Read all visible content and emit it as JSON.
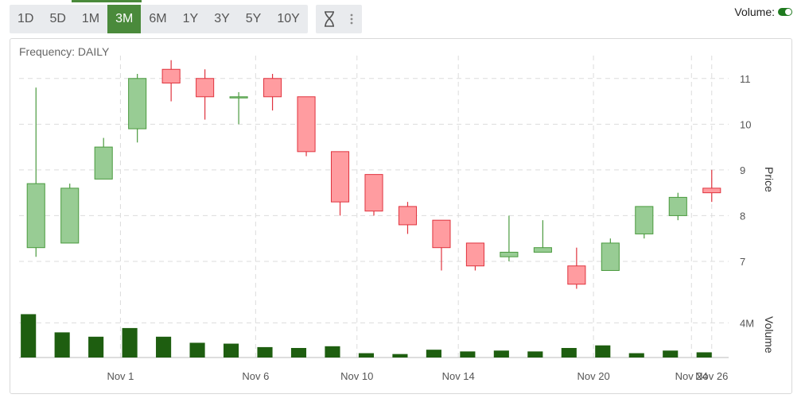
{
  "toolbar": {
    "ranges": [
      "1D",
      "5D",
      "1M",
      "3M",
      "6M",
      "1Y",
      "3Y",
      "5Y",
      "10Y"
    ],
    "active_range": "3M"
  },
  "volume_toggle": {
    "label": "Volume:",
    "enabled": true
  },
  "colors": {
    "up": "#4a9a3e",
    "up_fill": "#98cc94",
    "down": "#e0333e",
    "down_fill": "#ff9ca0",
    "volume": "#1e5e10",
    "accent": "#4a8a3b"
  },
  "chart_data": {
    "type": "candlestick",
    "frequency_label": "Frequency: DAILY",
    "ylabel": "Price",
    "volume_label": "Volume",
    "yticks": [
      7,
      8,
      9,
      10,
      11
    ],
    "ylim": [
      6.2,
      11.5
    ],
    "volume_tick": "4M",
    "xticks": [
      "Nov 1",
      "Nov 6",
      "Nov 10",
      "Nov 14",
      "Nov 20",
      "Nov 24",
      "Nov 26"
    ],
    "candles": [
      {
        "open": 7.3,
        "high": 10.8,
        "low": 7.1,
        "close": 8.7,
        "volume": 5.0
      },
      {
        "open": 7.4,
        "high": 8.7,
        "low": 7.4,
        "close": 8.6,
        "volume": 2.9
      },
      {
        "open": 8.8,
        "high": 9.7,
        "low": 8.8,
        "close": 9.5,
        "volume": 2.4
      },
      {
        "open": 9.9,
        "high": 11.1,
        "low": 9.6,
        "close": 11.0,
        "volume": 3.4
      },
      {
        "open": 11.2,
        "high": 11.4,
        "low": 10.5,
        "close": 10.9,
        "volume": 2.4
      },
      {
        "open": 11.0,
        "high": 11.2,
        "low": 10.1,
        "close": 10.6,
        "volume": 1.7
      },
      {
        "open": 10.6,
        "high": 10.7,
        "low": 10.0,
        "close": 10.6,
        "volume": 1.6
      },
      {
        "open": 11.0,
        "high": 11.1,
        "low": 10.3,
        "close": 10.6,
        "volume": 1.2
      },
      {
        "open": 10.6,
        "high": 10.6,
        "low": 9.3,
        "close": 9.4,
        "volume": 1.1
      },
      {
        "open": 9.4,
        "high": 9.4,
        "low": 8.0,
        "close": 8.3,
        "volume": 1.3
      },
      {
        "open": 8.9,
        "high": 8.9,
        "low": 8.0,
        "close": 8.1,
        "volume": 0.5
      },
      {
        "open": 8.2,
        "high": 8.3,
        "low": 7.6,
        "close": 7.8,
        "volume": 0.4
      },
      {
        "open": 7.9,
        "high": 7.9,
        "low": 6.8,
        "close": 7.3,
        "volume": 0.9
      },
      {
        "open": 7.4,
        "high": 7.4,
        "low": 6.8,
        "close": 6.9,
        "volume": 0.7
      },
      {
        "open": 7.1,
        "high": 8.0,
        "low": 7.0,
        "close": 7.2,
        "volume": 0.8
      },
      {
        "open": 7.2,
        "high": 7.9,
        "low": 7.2,
        "close": 7.3,
        "volume": 0.7
      },
      {
        "open": 6.9,
        "high": 7.3,
        "low": 6.4,
        "close": 6.5,
        "volume": 1.1
      },
      {
        "open": 6.8,
        "high": 7.5,
        "low": 6.8,
        "close": 7.4,
        "volume": 1.4
      },
      {
        "open": 7.6,
        "high": 8.2,
        "low": 7.5,
        "close": 8.2,
        "volume": 0.5
      },
      {
        "open": 8.0,
        "high": 8.5,
        "low": 7.9,
        "close": 8.4,
        "volume": 0.8
      },
      {
        "open": 8.6,
        "high": 9.0,
        "low": 8.3,
        "close": 8.5,
        "volume": 0.6
      }
    ]
  }
}
